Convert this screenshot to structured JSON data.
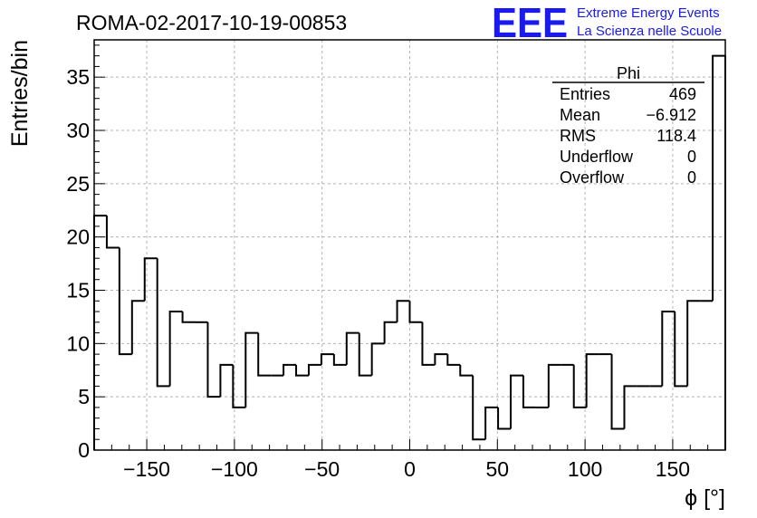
{
  "chart_data": {
    "type": "bar",
    "title": "ROMA-02-2017-10-19-00853",
    "xlabel": "ϕ [°]",
    "ylabel": "Entries/bin",
    "xlim": [
      -180,
      180
    ],
    "ylim": [
      0,
      38.5
    ],
    "grid": true,
    "bin_width": 7.2,
    "bin_edges_start": -180,
    "values": [
      22,
      19,
      9,
      14,
      18,
      6,
      13,
      12,
      12,
      5,
      8,
      4,
      11,
      7,
      7,
      8,
      7,
      8,
      9,
      8,
      11,
      7,
      10,
      12,
      14,
      12,
      8,
      9,
      8,
      7,
      1,
      4,
      2,
      7,
      4,
      4,
      8,
      8,
      4,
      9,
      9,
      2,
      6,
      6,
      6,
      13,
      6,
      14,
      14,
      37
    ],
    "x_ticks": [
      "−150",
      "−100",
      "−50",
      "0",
      "50",
      "100",
      "150"
    ],
    "x_tick_values": [
      -150,
      -100,
      -50,
      0,
      50,
      100,
      150
    ],
    "y_ticks": [
      "0",
      "5",
      "10",
      "15",
      "20",
      "25",
      "30",
      "35"
    ],
    "y_tick_values": [
      0,
      5,
      10,
      15,
      20,
      25,
      30,
      35
    ]
  },
  "stats_box": {
    "title": "Phi",
    "rows": [
      {
        "label": "Entries",
        "value": "469"
      },
      {
        "label": "Mean",
        "value": "−6.912"
      },
      {
        "label": "RMS",
        "value": "118.4"
      },
      {
        "label": "Underflow",
        "value": "0"
      },
      {
        "label": "Overflow",
        "value": "0"
      }
    ]
  },
  "logo": {
    "mark": "EEE",
    "line1": "Extreme Energy Events",
    "line2": "La Scienza nelle Scuole",
    "color": "#1a1aee"
  }
}
